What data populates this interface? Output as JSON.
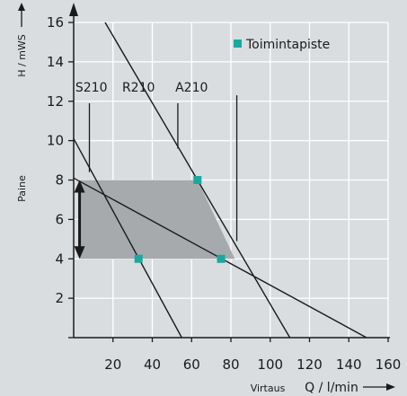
{
  "chart_data": {
    "type": "line",
    "title": "",
    "xlabel": "Virtaus",
    "xunit": "Q / l/min",
    "ylabel": "Paine",
    "yunit": "H / mWS",
    "xlim": [
      0,
      160
    ],
    "ylim": [
      0,
      16
    ],
    "x_ticks": [
      20,
      40,
      60,
      80,
      100,
      120,
      140,
      160
    ],
    "y_ticks": [
      2,
      4,
      6,
      8,
      10,
      12,
      14,
      16
    ],
    "grid": true,
    "legend_position": "top-right",
    "legend": {
      "label": "Toimintapiste",
      "color": "#1aa8a0"
    },
    "series": [
      {
        "name": "S210",
        "points": [
          [
            0,
            10.1
          ],
          [
            55,
            0
          ]
        ]
      },
      {
        "name": "R210",
        "points": [
          [
            16,
            16
          ],
          [
            110,
            0
          ]
        ]
      },
      {
        "name": "A210",
        "points": [
          [
            0,
            8.1
          ],
          [
            149,
            0
          ]
        ]
      }
    ],
    "series_labels": [
      {
        "text": "S210",
        "x": 9,
        "y": 12.5
      },
      {
        "text": "R210",
        "x": 33,
        "y": 12.5
      },
      {
        "text": "A210",
        "x": 60,
        "y": 12.5
      }
    ],
    "leader_lines": [
      {
        "x": 8,
        "y_from": 11.9,
        "y_to": 8.4
      },
      {
        "x": 53,
        "y_from": 11.9,
        "y_to": 9.6
      },
      {
        "x": 83,
        "y_from": 12.3,
        "y_to": 4.9
      }
    ],
    "operating_points": [
      [
        33,
        4
      ],
      [
        63,
        8
      ],
      [
        75,
        4
      ]
    ],
    "operating_region": [
      [
        3,
        8
      ],
      [
        63,
        8
      ],
      [
        82,
        4
      ],
      [
        3,
        4
      ]
    ],
    "range_arrow": {
      "x": 3,
      "y_from": 4,
      "y_to": 8
    },
    "colors": {
      "background": "#d9dde0",
      "region": "#a6aaad",
      "marker": "#1aa8a0",
      "line": "#1a1a1a",
      "grid": "#ffffff"
    }
  }
}
